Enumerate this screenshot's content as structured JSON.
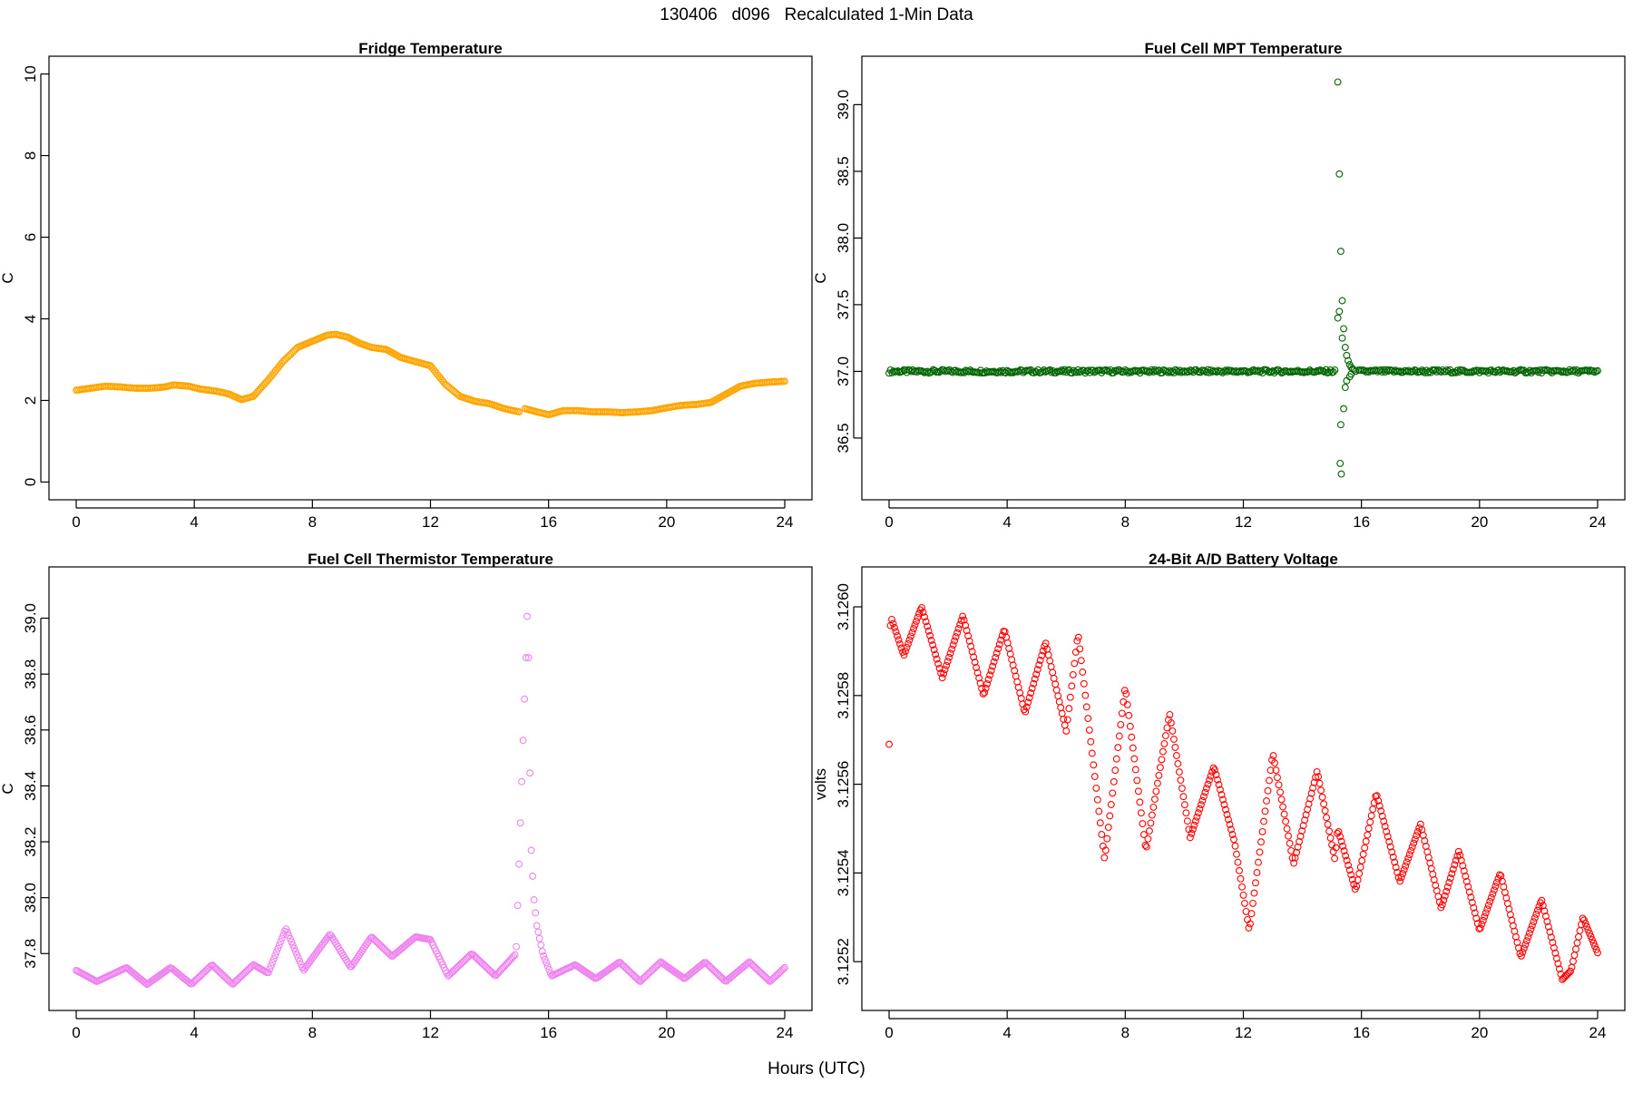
{
  "figure": {
    "title": "130406   d096   Recalculated 1-Min Data",
    "x_label": "Hours (UTC)"
  },
  "chart_data": [
    {
      "type": "scatter",
      "title": "Fridge Temperature",
      "xlabel": "",
      "ylabel": "C",
      "color": "#FFA500",
      "xlim": [
        0,
        24
      ],
      "ylim": [
        0,
        10
      ],
      "xticks": [
        0,
        4,
        8,
        12,
        16,
        20,
        24
      ],
      "yticks": [
        0,
        2,
        4,
        6,
        8,
        10
      ],
      "tick_labels_x": [
        "0",
        "4",
        "8",
        "12",
        "16",
        "20",
        "24"
      ],
      "tick_labels_y": [
        "0",
        "2",
        "4",
        "6",
        "8",
        "10"
      ],
      "series": [
        {
          "name": "Fridge Temperature",
          "x": [
            0,
            0.5,
            1,
            1.5,
            2,
            2.5,
            3,
            3.3,
            3.8,
            4.2,
            4.8,
            5.2,
            5.6,
            6,
            6.5,
            7,
            7.5,
            8,
            8.5,
            8.8,
            9.2,
            9.6,
            10,
            10.5,
            11,
            11.5,
            12,
            12.5,
            13,
            13.5,
            14,
            14.5,
            15,
            15.2,
            15.6,
            16,
            16.5,
            17,
            17.5,
            18,
            18.5,
            19,
            19.5,
            20,
            20.5,
            21,
            21.5,
            22,
            22.5,
            23,
            23.5,
            24
          ],
          "y": [
            2.25,
            2.3,
            2.35,
            2.33,
            2.3,
            2.3,
            2.33,
            2.38,
            2.35,
            2.28,
            2.22,
            2.15,
            2.02,
            2.1,
            2.5,
            2.95,
            3.3,
            3.45,
            3.6,
            3.62,
            3.55,
            3.4,
            3.3,
            3.25,
            3.05,
            2.95,
            2.85,
            2.4,
            2.1,
            1.98,
            1.92,
            1.8,
            1.72,
            1.8,
            1.72,
            1.65,
            1.75,
            1.75,
            1.72,
            1.72,
            1.7,
            1.72,
            1.75,
            1.82,
            1.88,
            1.9,
            1.95,
            2.15,
            2.35,
            2.42,
            2.45,
            2.47
          ]
        }
      ]
    },
    {
      "type": "scatter",
      "title": "Fuel Cell MPT Temperature",
      "xlabel": "",
      "ylabel": "C",
      "color": "#006400",
      "xlim": [
        0,
        24
      ],
      "ylim": [
        36.17,
        39.23
      ],
      "xticks": [
        0,
        4,
        8,
        12,
        16,
        20,
        24
      ],
      "yticks": [
        36.5,
        37.0,
        37.5,
        38.0,
        38.5,
        39.0
      ],
      "tick_labels_x": [
        "0",
        "4",
        "8",
        "12",
        "16",
        "20",
        "24"
      ],
      "tick_labels_y": [
        "36.5",
        "37.0",
        "37.5",
        "38.0",
        "38.5",
        "39.0"
      ],
      "series": [
        {
          "name": "Fuel Cell MPT Temperature",
          "baseline": 37.0,
          "x_outliers": [
            15.2,
            15.25,
            15.3,
            15.35,
            15.4,
            15.45,
            15.5,
            15.55,
            15.6,
            15.65,
            15.7,
            15.75,
            15.8,
            15.2,
            15.25,
            15.35,
            15.4,
            15.45,
            15.5,
            15.6,
            15.65,
            15.3,
            15.28,
            15.32
          ],
          "y_outliers": [
            39.17,
            38.48,
            37.9,
            37.53,
            37.32,
            37.18,
            37.12,
            37.08,
            37.05,
            37.03,
            37.02,
            37.01,
            37.0,
            37.4,
            37.45,
            37.25,
            36.72,
            36.88,
            36.93,
            36.96,
            36.98,
            36.6,
            36.31,
            36.23
          ]
        }
      ]
    },
    {
      "type": "scatter",
      "title": "Fuel Cell Thermistor Temperature",
      "xlabel": "",
      "ylabel": "C",
      "color": "#EE82EE",
      "xlim": [
        0,
        24
      ],
      "ylim": [
        37.66,
        39.12
      ],
      "xticks": [
        0,
        4,
        8,
        12,
        16,
        20,
        24
      ],
      "yticks": [
        37.8,
        38.0,
        38.2,
        38.4,
        38.6,
        38.8,
        39.0
      ],
      "tick_labels_x": [
        "0",
        "4",
        "8",
        "12",
        "16",
        "20",
        "24"
      ],
      "tick_labels_y": [
        "37.8",
        "38.0",
        "38.2",
        "38.4",
        "38.6",
        "38.8",
        "39.0"
      ],
      "series": [
        {
          "name": "Fuel Cell Thermistor Temperature",
          "x": [
            0,
            0.7,
            1.7,
            2.4,
            3.2,
            3.9,
            4.6,
            5.3,
            6.0,
            6.5,
            7.1,
            7.7,
            8.6,
            9.3,
            10.0,
            10.7,
            11.5,
            12.0,
            12.6,
            13.4,
            14.2,
            14.9,
            15.3,
            15.35,
            15.4,
            15.5,
            15.6,
            15.8,
            16.1,
            16.9,
            17.6,
            18.4,
            19.1,
            19.8,
            20.6,
            21.3,
            22.0,
            22.8,
            23.5,
            24
          ],
          "y": [
            37.74,
            37.7,
            37.75,
            37.69,
            37.75,
            37.69,
            37.76,
            37.69,
            37.76,
            37.73,
            37.89,
            37.74,
            37.87,
            37.75,
            37.86,
            37.79,
            37.86,
            37.85,
            37.72,
            37.8,
            37.72,
            37.8,
            39.08,
            38.6,
            38.2,
            38.0,
            37.9,
            37.8,
            37.72,
            37.76,
            37.71,
            37.77,
            37.7,
            37.77,
            37.71,
            37.77,
            37.7,
            37.77,
            37.7,
            37.75
          ]
        }
      ]
    },
    {
      "type": "scatter",
      "title": "24-Bit A/D Battery Voltage",
      "xlabel": "",
      "ylabel": "volts",
      "color": "#FF0000",
      "xlim": [
        0,
        24
      ],
      "ylim": [
        3.12513,
        3.12605
      ],
      "xticks": [
        0,
        4,
        8,
        12,
        16,
        20,
        24
      ],
      "yticks": [
        3.1252,
        3.1254,
        3.1256,
        3.1258,
        3.126
      ],
      "tick_labels_x": [
        "0",
        "4",
        "8",
        "12",
        "16",
        "20",
        "24"
      ],
      "tick_labels_y": [
        "3.1252",
        "3.1254",
        "3.1256",
        "3.1258",
        "3.1260"
      ],
      "series": [
        {
          "name": "24-Bit A/D Battery Voltage",
          "x": [
            0,
            0.05,
            0.5,
            1.1,
            1.8,
            2.5,
            3.2,
            3.9,
            4.6,
            5.3,
            6.0,
            6.4,
            7.3,
            8.0,
            8.7,
            9.5,
            10.2,
            11.0,
            11.7,
            12.2,
            13.0,
            13.7,
            14.5,
            15.1,
            15.2,
            15.8,
            16.5,
            17.3,
            18.0,
            18.7,
            19.3,
            20.0,
            20.7,
            21.4,
            22.1,
            22.8,
            23.1,
            23.5,
            24
          ],
          "y": [
            3.12569,
            3.12598,
            3.12589,
            3.126,
            3.12584,
            3.12598,
            3.1258,
            3.12595,
            3.12576,
            3.12592,
            3.12572,
            3.12594,
            3.12543,
            3.12582,
            3.12545,
            3.12576,
            3.12548,
            3.12564,
            3.12547,
            3.12527,
            3.12567,
            3.12542,
            3.12563,
            3.12543,
            3.1255,
            3.12536,
            3.12558,
            3.12538,
            3.12551,
            3.12532,
            3.12545,
            3.12527,
            3.1254,
            3.12521,
            3.12534,
            3.12516,
            3.12518,
            3.1253,
            3.12522
          ]
        }
      ]
    }
  ]
}
